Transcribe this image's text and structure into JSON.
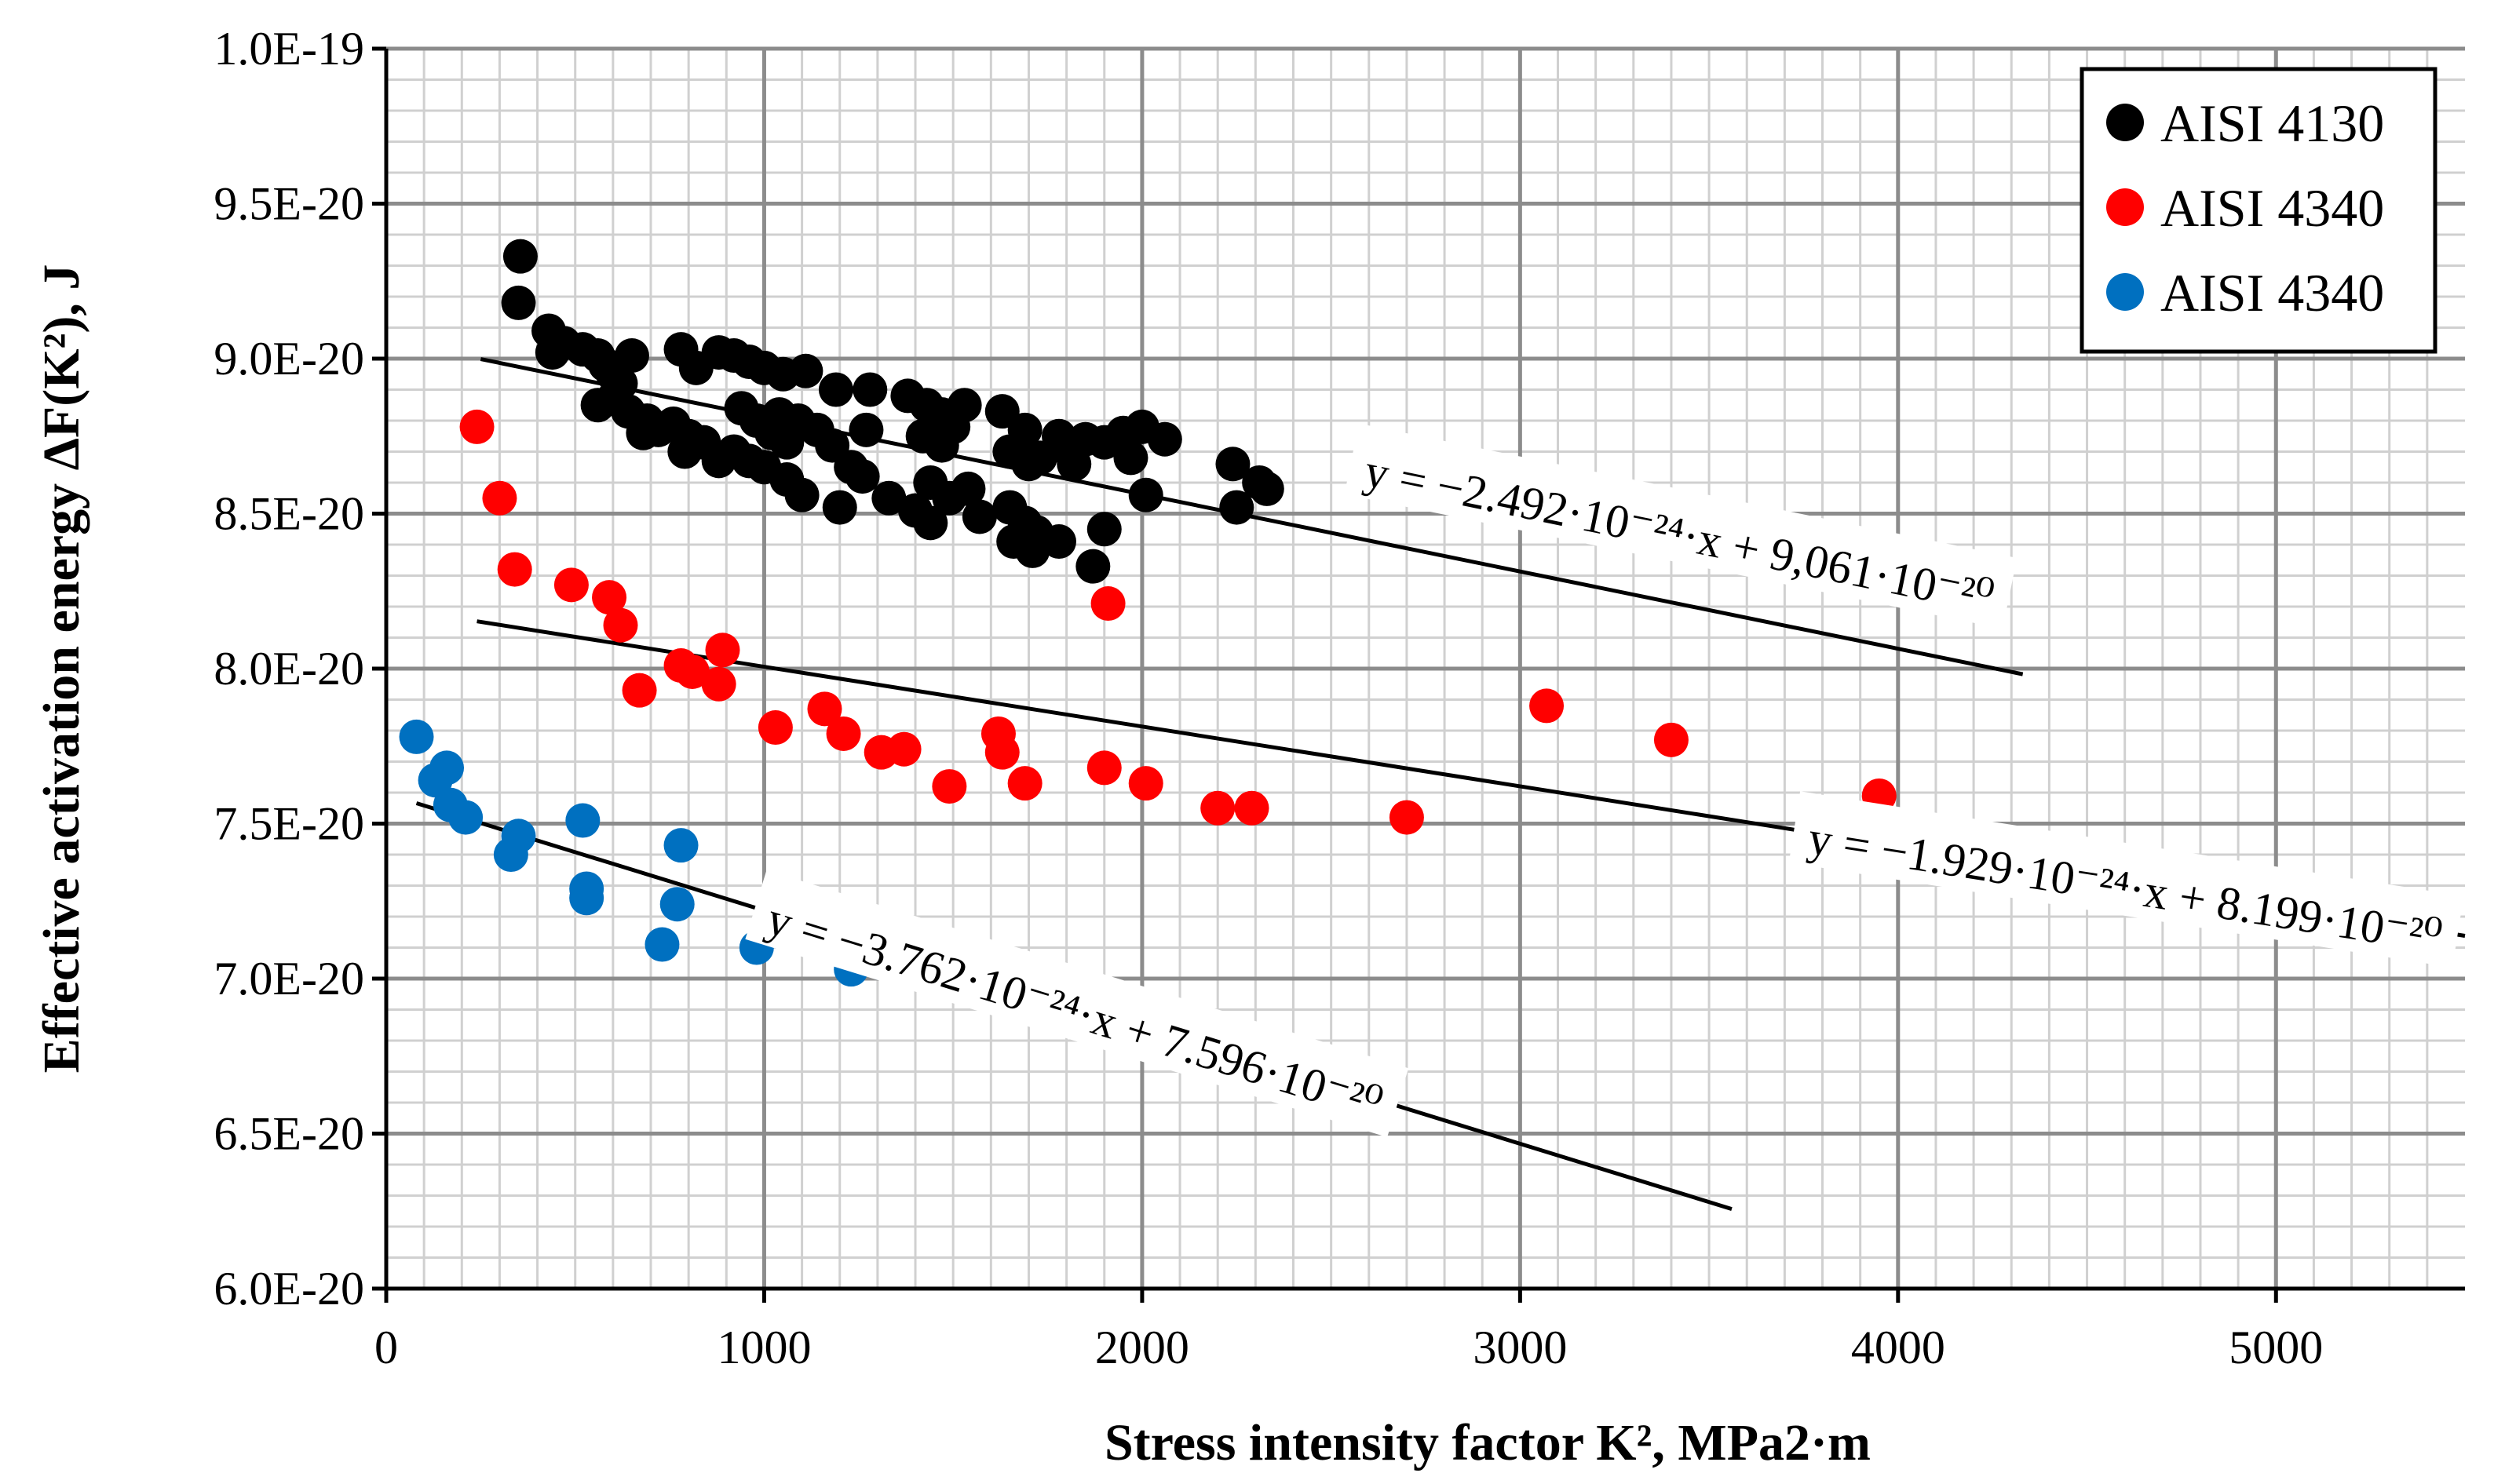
{
  "chart_data": {
    "type": "scatter",
    "title": "",
    "xlabel": "Stress intensity factor K², MPa2·m",
    "ylabel": "Effective activation energy ΔF(K²), J",
    "xlim": [
      0,
      5500
    ],
    "ylim": [
      6e-20,
      1e-19
    ],
    "x_ticks": [
      "0",
      "1000",
      "2000",
      "3000",
      "4000",
      "5000"
    ],
    "x_tick_values": [
      0,
      1000,
      2000,
      3000,
      4000,
      5000
    ],
    "y_ticks": [
      "6.0E-20",
      "6.5E-20",
      "7.0E-20",
      "7.5E-20",
      "8.0E-20",
      "8.5E-20",
      "9.0E-20",
      "9.5E-20",
      "1.0E-19"
    ],
    "y_tick_values": [
      6e-20,
      6.5e-20,
      7e-20,
      7.5e-20,
      8e-20,
      8.5e-20,
      9e-20,
      9.5e-20,
      1e-19
    ],
    "grid": true,
    "legend_position": "top-right",
    "series": [
      {
        "name": "AISI 4130",
        "color": "#000000",
        "points": [
          [
            355,
            9.33e-20
          ],
          [
            350,
            9.18e-20
          ],
          [
            430,
            9.09e-20
          ],
          [
            470,
            9.05e-20
          ],
          [
            440,
            9.02e-20
          ],
          [
            520,
            9.03e-20
          ],
          [
            560,
            9.01e-20
          ],
          [
            580,
            8.98e-20
          ],
          [
            600,
            8.95e-20
          ],
          [
            650,
            9.01e-20
          ],
          [
            620,
            8.92e-20
          ],
          [
            560,
            8.85e-20
          ],
          [
            600,
            8.87e-20
          ],
          [
            640,
            8.83e-20
          ],
          [
            690,
            8.8e-20
          ],
          [
            720,
            8.77e-20
          ],
          [
            680,
            8.76e-20
          ],
          [
            760,
            8.79e-20
          ],
          [
            800,
            8.75e-20
          ],
          [
            790,
            8.7e-20
          ],
          [
            840,
            8.73e-20
          ],
          [
            880,
            8.67e-20
          ],
          [
            780,
            9.03e-20
          ],
          [
            820,
            8.97e-20
          ],
          [
            880,
            9.02e-20
          ],
          [
            920,
            9.01e-20
          ],
          [
            960,
            8.99e-20
          ],
          [
            1000,
            8.97e-20
          ],
          [
            1050,
            8.95e-20
          ],
          [
            1110,
            8.96e-20
          ],
          [
            940,
            8.84e-20
          ],
          [
            980,
            8.8e-20
          ],
          [
            1020,
            8.76e-20
          ],
          [
            1060,
            8.73e-20
          ],
          [
            920,
            8.7e-20
          ],
          [
            960,
            8.67e-20
          ],
          [
            1000,
            8.65e-20
          ],
          [
            1060,
            8.61e-20
          ],
          [
            1100,
            8.56e-20
          ],
          [
            1040,
            8.82e-20
          ],
          [
            1090,
            8.8e-20
          ],
          [
            1140,
            8.77e-20
          ],
          [
            1180,
            8.72e-20
          ],
          [
            1230,
            8.65e-20
          ],
          [
            1260,
            8.62e-20
          ],
          [
            1200,
            8.52e-20
          ],
          [
            1190,
            8.9e-20
          ],
          [
            1280,
            8.9e-20
          ],
          [
            1380,
            8.88e-20
          ],
          [
            1430,
            8.85e-20
          ],
          [
            1470,
            8.82e-20
          ],
          [
            1530,
            8.85e-20
          ],
          [
            1270,
            8.77e-20
          ],
          [
            1330,
            8.55e-20
          ],
          [
            1400,
            8.51e-20
          ],
          [
            1440,
            8.47e-20
          ],
          [
            1490,
            8.55e-20
          ],
          [
            1540,
            8.58e-20
          ],
          [
            1570,
            8.49e-20
          ],
          [
            1440,
            8.6e-20
          ],
          [
            1470,
            8.72e-20
          ],
          [
            1500,
            8.78e-20
          ],
          [
            1420,
            8.75e-20
          ],
          [
            1630,
            8.83e-20
          ],
          [
            1690,
            8.77e-20
          ],
          [
            1730,
            8.68e-20
          ],
          [
            1780,
            8.72e-20
          ],
          [
            1820,
            8.66e-20
          ],
          [
            1650,
            8.7e-20
          ],
          [
            1700,
            8.66e-20
          ],
          [
            1780,
            8.75e-20
          ],
          [
            1850,
            8.74e-20
          ],
          [
            1900,
            8.73e-20
          ],
          [
            1950,
            8.76e-20
          ],
          [
            2000,
            8.78e-20
          ],
          [
            1970,
            8.68e-20
          ],
          [
            2060,
            8.74e-20
          ],
          [
            1650,
            8.52e-20
          ],
          [
            1690,
            8.47e-20
          ],
          [
            1720,
            8.44e-20
          ],
          [
            1660,
            8.41e-20
          ],
          [
            1710,
            8.38e-20
          ],
          [
            1780,
            8.41e-20
          ],
          [
            1870,
            8.33e-20
          ],
          [
            1900,
            8.45e-20
          ],
          [
            2010,
            8.56e-20
          ],
          [
            2240,
            8.66e-20
          ],
          [
            2250,
            8.52e-20
          ],
          [
            2310,
            8.6e-20
          ],
          [
            2330,
            8.58e-20
          ]
        ]
      },
      {
        "name": "AISI 4340",
        "color": "#ff0000",
        "points": [
          [
            240,
            8.78e-20
          ],
          [
            300,
            8.55e-20
          ],
          [
            340,
            8.32e-20
          ],
          [
            490,
            8.27e-20
          ],
          [
            590,
            8.23e-20
          ],
          [
            620,
            8.14e-20
          ],
          [
            670,
            7.93e-20
          ],
          [
            780,
            8.01e-20
          ],
          [
            810,
            7.99e-20
          ],
          [
            880,
            7.95e-20
          ],
          [
            890,
            8.06e-20
          ],
          [
            1030,
            7.81e-20
          ],
          [
            1160,
            7.87e-20
          ],
          [
            1210,
            7.79e-20
          ],
          [
            1310,
            7.73e-20
          ],
          [
            1370,
            7.74e-20
          ],
          [
            1490,
            7.62e-20
          ],
          [
            1620,
            7.79e-20
          ],
          [
            1630,
            7.73e-20
          ],
          [
            1690,
            7.63e-20
          ],
          [
            1900,
            7.68e-20
          ],
          [
            2010,
            7.63e-20
          ],
          [
            2200,
            7.55e-20
          ],
          [
            2290,
            7.55e-20
          ],
          [
            2700,
            7.52e-20
          ],
          [
            1910,
            8.21e-20
          ],
          [
            3070,
            7.88e-20
          ],
          [
            3400,
            7.77e-20
          ],
          [
            3950,
            7.59e-20
          ],
          [
            4040,
            7.46e-20
          ],
          [
            4610,
            7.3e-20
          ],
          [
            5110,
            7.24e-20
          ]
        ]
      },
      {
        "name": "AISI 4340",
        "color": "#0070c0",
        "points": [
          [
            80,
            7.78e-20
          ],
          [
            130,
            7.64e-20
          ],
          [
            160,
            7.68e-20
          ],
          [
            170,
            7.56e-20
          ],
          [
            210,
            7.52e-20
          ],
          [
            330,
            7.4e-20
          ],
          [
            350,
            7.46e-20
          ],
          [
            520,
            7.51e-20
          ],
          [
            530,
            7.29e-20
          ],
          [
            530,
            7.26e-20
          ],
          [
            730,
            7.11e-20
          ],
          [
            770,
            7.24e-20
          ],
          [
            780,
            7.43e-20
          ],
          [
            980,
            7.1e-20
          ],
          [
            1230,
            7.03e-20
          ],
          [
            1310,
            7.05e-20
          ],
          [
            1900,
            6.85e-20
          ]
        ]
      }
    ],
    "trendlines": [
      {
        "series": "AISI 4130",
        "slope": -2.492e-24,
        "intercept": 9.061e-20,
        "x_range": [
          250,
          4330
        ]
      },
      {
        "series": "AISI 4340",
        "slope": -1.929e-24,
        "intercept": 8.199e-20,
        "x_range": [
          240,
          5500
        ]
      },
      {
        "series": "AISI 4340",
        "slope": -3.762e-24,
        "intercept": 7.596e-20,
        "x_range": [
          80,
          3560
        ]
      }
    ],
    "annotations": [
      "y = −2.492·10⁻²⁴·x + 9,061·10⁻²⁰",
      "y = −1.929·10⁻²⁴·x + 8.199·10⁻²⁰",
      "y = −3.762·10⁻²⁴·x + 7.596·10⁻²⁰"
    ]
  }
}
